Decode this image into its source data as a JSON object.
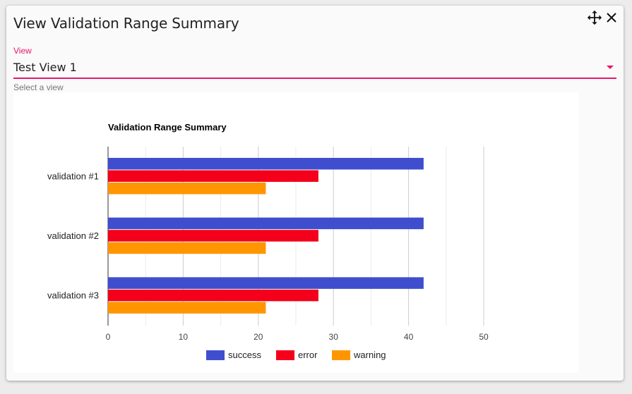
{
  "dialog": {
    "title": "View Validation Range Summary",
    "field_label": "View",
    "selected_view": "Test View 1",
    "hint": "Select a view"
  },
  "icons": {
    "move": "move-icon",
    "close": "close-icon",
    "dropdown": "chevron-down-icon"
  },
  "colors": {
    "accent": "#e6176b"
  },
  "chart_data": {
    "type": "bar",
    "orientation": "horizontal",
    "title": "Validation Range Summary",
    "categories": [
      "validation #1",
      "validation #2",
      "validation #3"
    ],
    "series": [
      {
        "name": "success",
        "color": "#3f4ecf",
        "values": [
          42,
          42,
          42
        ]
      },
      {
        "name": "error",
        "color": "#f4001b",
        "values": [
          28,
          28,
          28
        ]
      },
      {
        "name": "warning",
        "color": "#ff9600",
        "values": [
          21,
          21,
          21
        ]
      }
    ],
    "xlim": [
      0,
      50
    ],
    "xticks": [
      0,
      10,
      20,
      30,
      40,
      50
    ],
    "grid": true,
    "legend": "bottom"
  }
}
